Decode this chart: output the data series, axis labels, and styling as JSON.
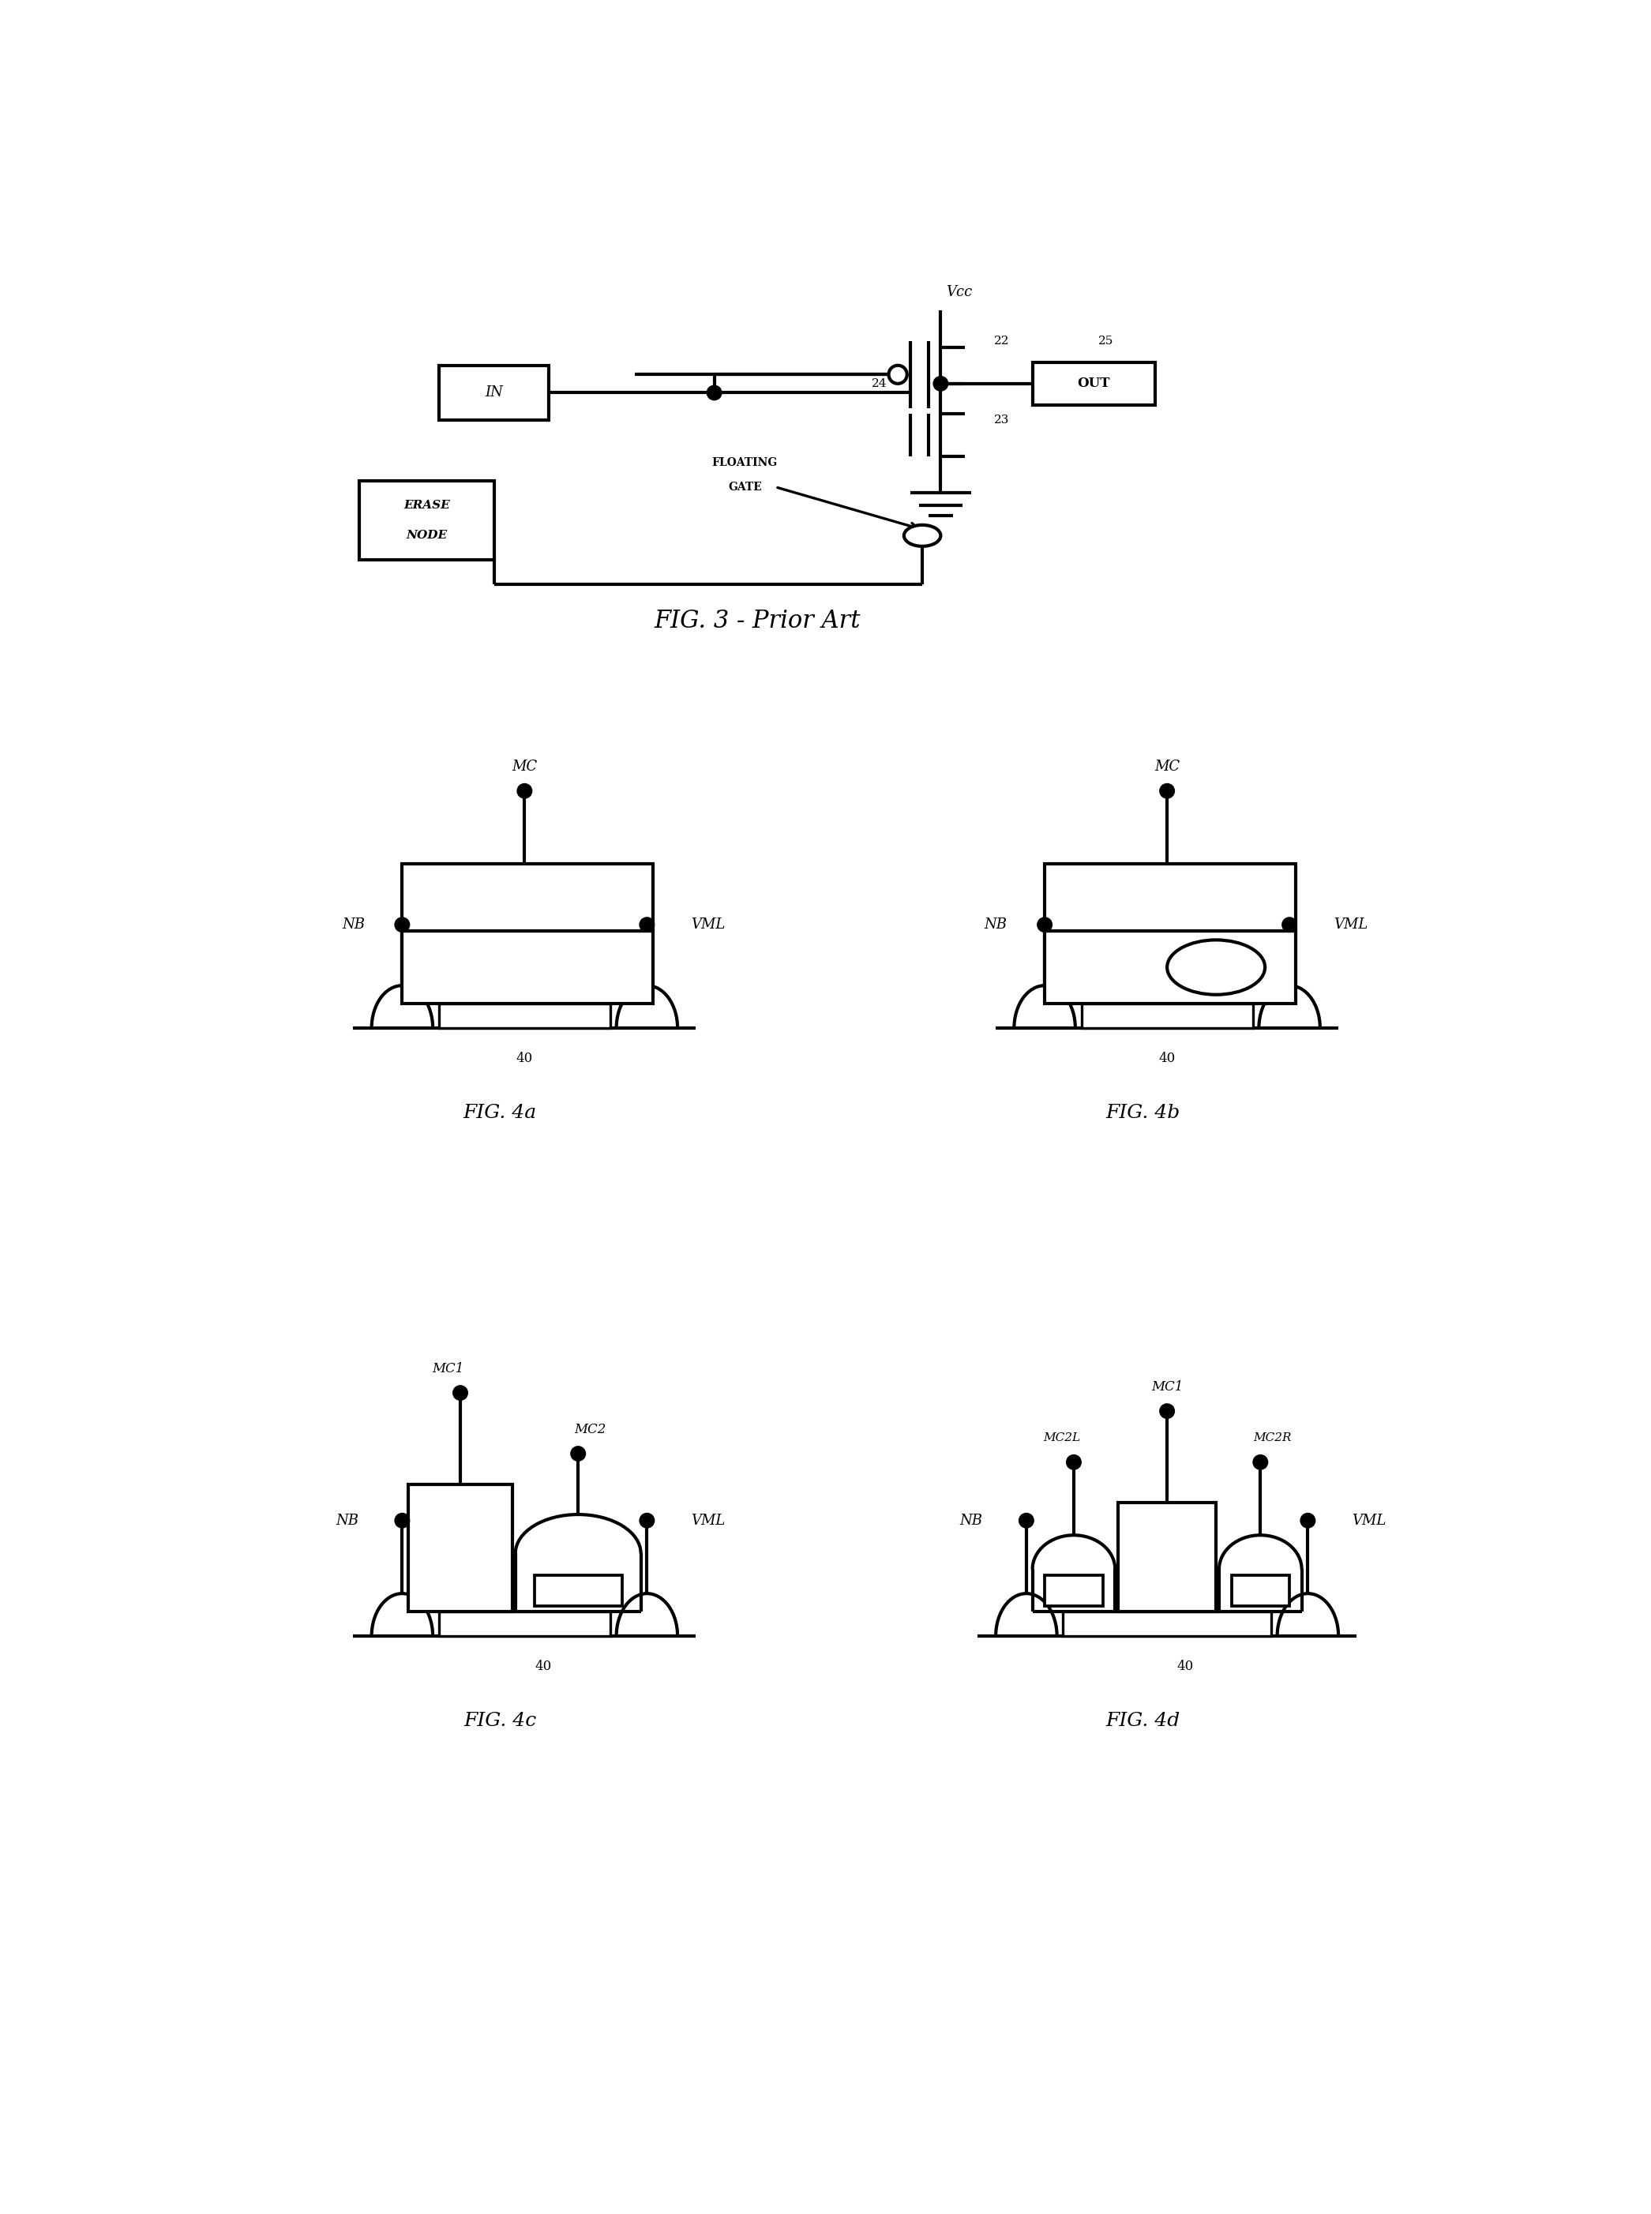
{
  "fig_width": 20.91,
  "fig_height": 28.04,
  "bg_color": "#ffffff",
  "line_color": "#000000",
  "lw": 3.0,
  "lw_thin": 1.8,
  "title_fig3": "FIG. 3 - Prior Art",
  "title_fig4a": "FIG. 4a",
  "title_fig4b": "FIG. 4b",
  "title_fig4c": "FIG. 4c",
  "title_fig4d": "FIG. 4d"
}
